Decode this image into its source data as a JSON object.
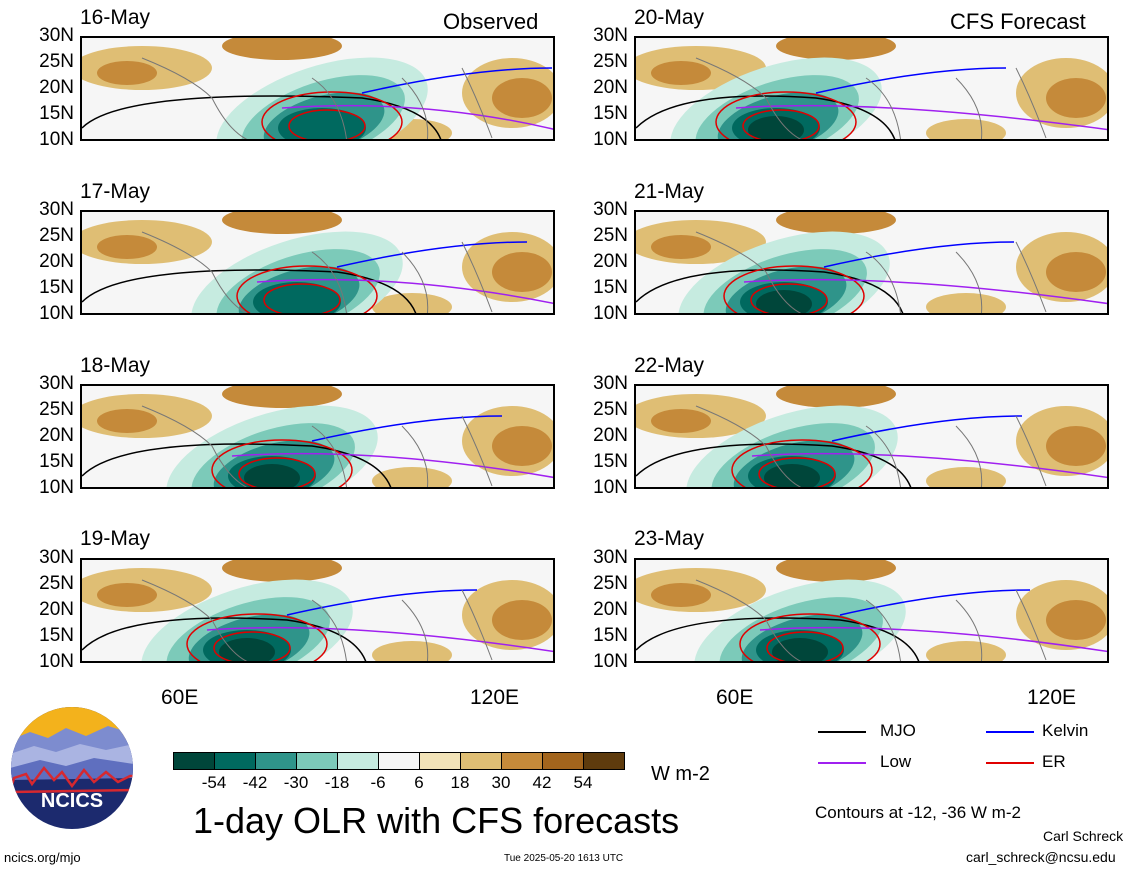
{
  "left_header": "Observed",
  "right_header": "CFS Forecast",
  "left_panels": [
    {
      "date": "16-May"
    },
    {
      "date": "17-May"
    },
    {
      "date": "18-May"
    },
    {
      "date": "19-May"
    }
  ],
  "right_panels": [
    {
      "date": "20-May"
    },
    {
      "date": "21-May"
    },
    {
      "date": "22-May"
    },
    {
      "date": "23-May"
    }
  ],
  "lat_labels": [
    "30N",
    "25N",
    "20N",
    "15N",
    "10N"
  ],
  "lon_labels": [
    "60E",
    "120E"
  ],
  "colorbar": {
    "colors": [
      "#00463a",
      "#00695f",
      "#2f948a",
      "#7ccab9",
      "#c6ebe0",
      "#f6f6f6",
      "#f2e3b8",
      "#dfbe74",
      "#c58a3a",
      "#a3651d",
      "#5e3b0d"
    ],
    "labels": [
      "-54",
      "-42",
      "-30",
      "-18",
      "-6",
      "6",
      "18",
      "30",
      "42",
      "54"
    ],
    "units": "W m-2"
  },
  "legend": [
    {
      "name": "MJO",
      "color": "#000000"
    },
    {
      "name": "Kelvin",
      "color": "#0000ff"
    },
    {
      "name": "Low",
      "color": "#a020f0"
    },
    {
      "name": "ER",
      "color": "#e00000"
    }
  ],
  "contour_note": "Contours at -12, -36 W m-2",
  "title": "1-day OLR with CFS forecasts",
  "logo_text": "NCICS",
  "url": "ncics.org/mjo",
  "timestamp": "Tue 2025-05-20 1613 UTC",
  "author": "Carl Schreck",
  "email": "carl_schreck@ncsu.edu"
}
